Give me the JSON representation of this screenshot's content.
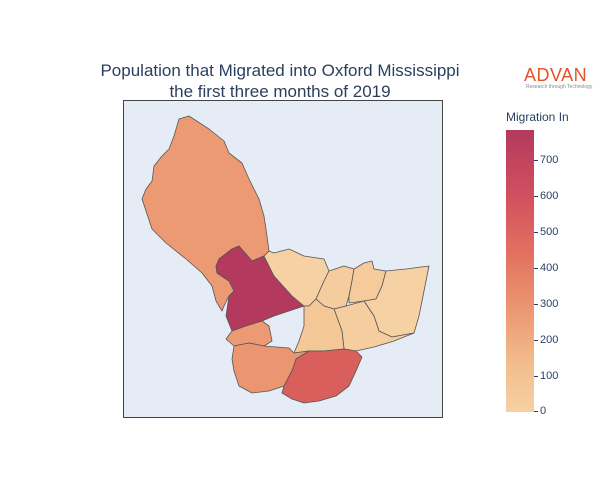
{
  "title": {
    "line1": "Population that Migrated into Oxford Mississippi",
    "line2": "the first three months of 2019"
  },
  "logo": {
    "word": "ADVAN",
    "tagline": "Research through Technology",
    "color": "#e5532a"
  },
  "colorbar": {
    "title": "Migration In",
    "ticks": [
      "700",
      "600",
      "500",
      "400",
      "300",
      "200",
      "100",
      "0"
    ],
    "range": [
      0,
      790
    ],
    "colors": [
      "#f6d1a3",
      "#ec9a73",
      "#d4525f",
      "#b3395e"
    ]
  },
  "map_data": {
    "regions": [
      {
        "id": "north-west-tract",
        "value": 230
      },
      {
        "id": "central-tract",
        "value": 790
      },
      {
        "id": "central-east-tract",
        "value": 30
      },
      {
        "id": "east-north-a",
        "value": 20
      },
      {
        "id": "east-north-b",
        "value": 25
      },
      {
        "id": "east-far",
        "value": 20
      },
      {
        "id": "east-south",
        "value": 25
      },
      {
        "id": "south-center",
        "value": 30
      },
      {
        "id": "south-west-small",
        "value": 230
      },
      {
        "id": "south-west-large",
        "value": 260
      },
      {
        "id": "south-east",
        "value": 450
      }
    ]
  }
}
